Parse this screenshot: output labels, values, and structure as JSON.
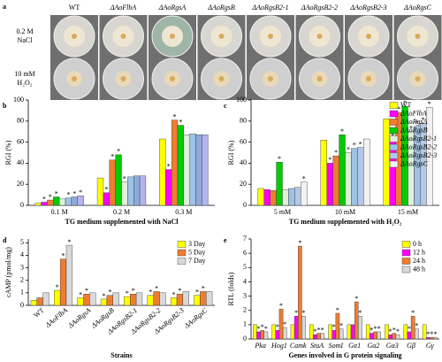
{
  "panel_a": {
    "panel_label": "a",
    "strains": [
      "WT",
      "ΔAoFlbA",
      "ΔAoRgsA",
      "ΔAoRgsB",
      "ΔAoRgsB2-1",
      "ΔAoRgsB2-2",
      "ΔAoRgsB2-3",
      "ΔAoRgsC"
    ],
    "rows": [
      [
        "0.2 M",
        "NaCl"
      ],
      [
        "10 mM",
        "H₂O₂"
      ]
    ]
  },
  "chart_data": [
    {
      "type": "bar",
      "panel_label": "b",
      "ylabel": "RGI (%)",
      "xlabel": "TG medium supplemented with NaCl",
      "categories": [
        "0.1 M",
        "0.2 M",
        "0.3 M"
      ],
      "ylim": [
        0,
        100
      ],
      "yticks": [
        0,
        20,
        40,
        60,
        80,
        100
      ],
      "series": [
        {
          "color": "#ffff00",
          "values": [
            2,
            26,
            63
          ],
          "marks": [
            null,
            null,
            null
          ]
        },
        {
          "color": "#ff00ff",
          "values": [
            3,
            12,
            34
          ],
          "marks": [
            "*",
            "*",
            "*"
          ]
        },
        {
          "color": "#ed7d31",
          "values": [
            5,
            43,
            81
          ],
          "marks": [
            "*",
            "*",
            "*"
          ]
        },
        {
          "color": "#00cc00",
          "values": [
            8,
            48,
            76
          ],
          "marks": [
            "*",
            "*",
            "*"
          ]
        },
        {
          "color": "#e2efda",
          "values": [
            6,
            22,
            67
          ],
          "marks": [
            null,
            "*",
            null
          ]
        },
        {
          "color": "#9dc3e6",
          "values": [
            7,
            27,
            68
          ],
          "marks": [
            "*",
            null,
            null
          ]
        },
        {
          "color": "#8faadc",
          "values": [
            8,
            28,
            67
          ],
          "marks": [
            "*",
            null,
            null
          ]
        },
        {
          "color": "#b4b4f0",
          "values": [
            9,
            28,
            67
          ],
          "marks": [
            "*",
            null,
            null
          ]
        }
      ]
    },
    {
      "type": "bar",
      "panel_label": "c",
      "ylabel": "RGI (%)",
      "xlabel": "TG medium supplemented with H₂O₂",
      "categories": [
        "5 mM",
        "10 mM",
        "15 mM"
      ],
      "ylim": [
        0,
        100
      ],
      "yticks": [
        0,
        20,
        40,
        60,
        80,
        100
      ],
      "legend": "upper right",
      "series": [
        {
          "name": "WT",
          "color": "#ffff00",
          "values": [
            16,
            62,
            82
          ],
          "marks": [
            null,
            null,
            null
          ]
        },
        {
          "name": "ΔAoFlbA",
          "color": "#ff00ff",
          "values": [
            15,
            40,
            63
          ],
          "marks": [
            null,
            "*",
            "*"
          ]
        },
        {
          "name": "ΔAoRgsA",
          "color": "#ed7d31",
          "values": [
            14,
            47,
            88
          ],
          "marks": [
            null,
            "*",
            "*"
          ]
        },
        {
          "name": "ΔAoRgsB",
          "color": "#00cc00",
          "values": [
            41,
            67,
            94
          ],
          "marks": [
            "*",
            "*",
            "*"
          ]
        },
        {
          "name": "ΔAoRgsB2-1",
          "color": "#e2efda",
          "values": [
            15,
            50,
            70
          ],
          "marks": [
            null,
            "*",
            "*"
          ]
        },
        {
          "name": "ΔAoRgsB2-2",
          "color": "#9dc3e6",
          "values": [
            16,
            54,
            75
          ],
          "marks": [
            null,
            "*",
            "*"
          ]
        },
        {
          "name": "ΔAoRgsB2-3",
          "color": "#b4c7e7",
          "values": [
            17,
            55,
            78
          ],
          "marks": [
            null,
            "*",
            "*"
          ]
        },
        {
          "name": "ΔAoRgsC",
          "color": "#f2f2f2",
          "values": [
            22,
            63,
            93
          ],
          "marks": [
            "*",
            null,
            "*"
          ]
        }
      ]
    },
    {
      "type": "bar",
      "panel_label": "d",
      "ylabel": "cAMP (pmol/mg)",
      "xlabel": "Strains",
      "rotate_labels": true,
      "categories": [
        "WT",
        "ΔAoFlbA",
        "ΔAoRgsA",
        "ΔAoRgsB",
        "ΔAoRgsB2-1",
        "ΔAoRgsB2-2",
        "ΔAoRgsB2-3",
        "ΔAoRgsC"
      ],
      "ylim": [
        0,
        5.3
      ],
      "yticks": [
        0,
        1,
        2,
        3,
        4,
        5
      ],
      "legend": "upper right",
      "series": [
        {
          "name": "3 Day",
          "color": "#ffff00",
          "values": [
            0.4,
            1.2,
            0.6,
            0.5,
            0.7,
            0.8,
            0.6,
            0.8
          ],
          "marks": [
            null,
            "*",
            "*",
            "*",
            "*",
            "*",
            "*",
            "*"
          ]
        },
        {
          "name": "5 Day",
          "color": "#ed7d31",
          "values": [
            0.6,
            3.7,
            0.9,
            0.8,
            0.9,
            1.1,
            0.9,
            1.1
          ],
          "marks": [
            null,
            "*",
            "*",
            "*",
            "*",
            "*",
            "*",
            "*"
          ]
        },
        {
          "name": "7 Day",
          "color": "#d9d9d9",
          "values": [
            1.0,
            4.8,
            1.0,
            1.0,
            1.0,
            1.0,
            1.1,
            1.1
          ],
          "marks": [
            null,
            "*",
            null,
            null,
            null,
            null,
            null,
            null
          ]
        }
      ]
    },
    {
      "type": "bar",
      "panel_label": "e",
      "ylabel": "RTL (folds)",
      "xlabel": "Genes involved in G protein signaling",
      "categories": [
        "Pka",
        "Hog1",
        "Camk",
        "StuA",
        "SomI",
        "Gα1",
        "Gα2",
        "Gα3",
        "Gβ",
        "Gγ"
      ],
      "ylim": [
        0,
        7
      ],
      "yticks": [
        0,
        1,
        2,
        3,
        4,
        5,
        6,
        7
      ],
      "legend": "upper right",
      "series": [
        {
          "name": "0 h",
          "color": "#ffff00",
          "values": [
            1,
            1,
            1,
            1,
            1,
            1,
            1,
            1,
            1,
            1
          ],
          "marks": [
            null,
            null,
            null,
            null,
            null,
            null,
            null,
            null,
            null,
            null
          ]
        },
        {
          "name": "12 h",
          "color": "#ff00ff",
          "values": [
            0.5,
            0.6,
            1.6,
            0.3,
            0.6,
            1.0,
            0.4,
            0.3,
            0.5,
            0.1
          ],
          "marks": [
            "*",
            "*",
            "*",
            "*",
            "*",
            null,
            "*",
            "*",
            "*",
            "*"
          ]
        },
        {
          "name": "24 h",
          "color": "#ed7d31",
          "values": [
            0.6,
            2.1,
            6.5,
            0.4,
            1.8,
            2.6,
            0.5,
            0.4,
            1.6,
            0.1
          ],
          "marks": [
            "*",
            "*",
            "*",
            "*",
            "*",
            "*",
            "*",
            "*",
            "*",
            "*"
          ]
        },
        {
          "name": "48 h",
          "color": "#d9d9d9",
          "values": [
            0.5,
            0.8,
            1.6,
            0.4,
            0.7,
            1.6,
            0.5,
            0.3,
            0.7,
            0.1
          ],
          "marks": [
            "*",
            "*",
            "*",
            "*",
            "*",
            "*",
            "*",
            "*",
            "*",
            "*"
          ]
        }
      ]
    }
  ]
}
